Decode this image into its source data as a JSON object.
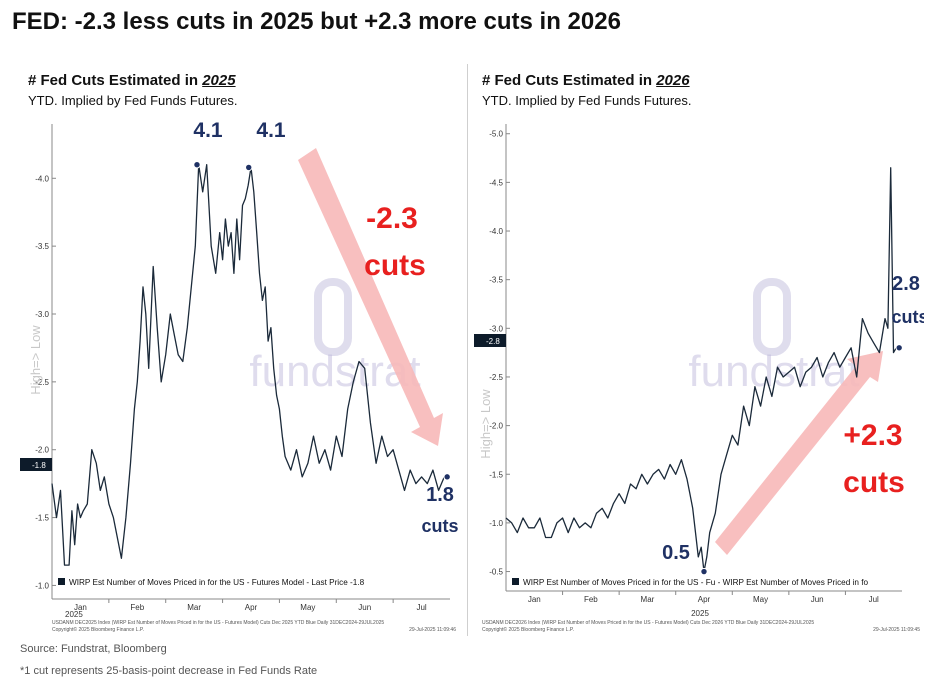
{
  "page": {
    "title": "FED: -2.3 less cuts in 2025 but +2.3 more cuts in 2026",
    "source": "Source: Fundstrat, Bloomberg",
    "footnote": "*1 cut represents 25-basis-point decrease in Fed Funds Rate",
    "watermark_text": "fundstrat"
  },
  "chart_data": [
    {
      "type": "line",
      "title_prefix": "# Fed Cuts Estimated in ",
      "title_year": "2025",
      "subtitle": "YTD. Implied by Fed Funds Futures.",
      "ylabel": "High=> Low",
      "ylim": [
        0.9,
        4.4
      ],
      "inverted_axis": true,
      "yticks": [
        4.0,
        3.5,
        3.0,
        2.5,
        2.0,
        1.5,
        1.0
      ],
      "ytick_labels": [
        "-4.0",
        "-3.5",
        "-3.0",
        "-2.5",
        "-2.0",
        "-1.5",
        "-1.0"
      ],
      "xlim": [
        0,
        7.0
      ],
      "xtick_labels": [
        "Jan",
        "Feb",
        "Mar",
        "Apr",
        "May",
        "Jun",
        "Jul"
      ],
      "xtick_pos": [
        0.5,
        1.5,
        2.5,
        3.5,
        4.5,
        5.5,
        6.5
      ],
      "x_year_label": "2025",
      "last_value_label": "-1.8",
      "last_value": 1.8,
      "legend": "WIRP Est Number of Moves Priced in for the US - Futures Model - Last Price -1.8",
      "bloomberg_line1": "USDANM DEC2025 Index (WIRP Est Number of Moves Priced in for the US - Futures Model) Cuts Dec 2025 YTD Blue  Daily 31DEC2024-29JUL2025",
      "bloomberg_line2": "Copyright© 2025 Bloomberg Finance L.P.",
      "bloomberg_date": "29-Jul-2025 11:09:46",
      "series": [
        {
          "name": "Dec 2025 cuts",
          "color": "#1b2a3a",
          "x": [
            0.0,
            0.08,
            0.15,
            0.22,
            0.3,
            0.35,
            0.4,
            0.45,
            0.5,
            0.55,
            0.62,
            0.7,
            0.78,
            0.85,
            0.92,
            1.0,
            1.08,
            1.15,
            1.22,
            1.3,
            1.38,
            1.45,
            1.5,
            1.55,
            1.6,
            1.65,
            1.7,
            1.78,
            1.85,
            1.92,
            2.0,
            2.08,
            2.15,
            2.22,
            2.3,
            2.38,
            2.45,
            2.52,
            2.58,
            2.65,
            2.72,
            2.8,
            2.88,
            2.95,
            3.0,
            3.05,
            3.1,
            3.15,
            3.2,
            3.25,
            3.3,
            3.35,
            3.4,
            3.45,
            3.5,
            3.55,
            3.6,
            3.65,
            3.7,
            3.75,
            3.8,
            3.85,
            3.9,
            3.95,
            4.0,
            4.05,
            4.1,
            4.2,
            4.3,
            4.4,
            4.5,
            4.6,
            4.7,
            4.8,
            4.9,
            5.0,
            5.1,
            5.2,
            5.3,
            5.4,
            5.5,
            5.6,
            5.7,
            5.8,
            5.9,
            6.0,
            6.1,
            6.2,
            6.3,
            6.4,
            6.5,
            6.6,
            6.7,
            6.8,
            6.9
          ],
          "values": [
            1.75,
            1.5,
            1.7,
            1.15,
            1.15,
            1.55,
            1.3,
            1.6,
            1.5,
            1.55,
            1.6,
            2.0,
            1.9,
            1.7,
            1.8,
            1.6,
            1.5,
            1.35,
            1.2,
            1.5,
            1.9,
            2.3,
            2.5,
            2.8,
            3.2,
            3.0,
            2.6,
            3.35,
            2.9,
            2.5,
            2.7,
            3.0,
            2.85,
            2.7,
            2.65,
            2.9,
            3.2,
            3.5,
            4.1,
            3.9,
            4.1,
            3.5,
            3.3,
            3.6,
            3.4,
            3.7,
            3.5,
            3.6,
            3.3,
            3.7,
            3.4,
            3.8,
            3.85,
            3.95,
            4.08,
            3.9,
            3.6,
            3.3,
            3.1,
            3.2,
            2.8,
            2.9,
            2.6,
            2.4,
            2.3,
            2.1,
            1.95,
            1.85,
            2.0,
            1.8,
            1.9,
            2.1,
            1.9,
            2.0,
            1.85,
            2.1,
            1.95,
            2.3,
            2.5,
            2.65,
            2.6,
            2.2,
            1.9,
            2.1,
            1.95,
            2.0,
            1.85,
            1.7,
            1.85,
            1.75,
            1.8,
            1.75,
            1.85,
            1.7,
            1.8
          ]
        }
      ],
      "annotations": [
        {
          "text": "4.1",
          "x": 2.55,
          "y": 4.1,
          "color": "#1f3164"
        },
        {
          "text": "4.1",
          "x": 3.46,
          "y": 4.08,
          "color": "#1f3164"
        },
        {
          "text": "1.8",
          "x": 6.95,
          "y": 1.8,
          "color": "#1f3164"
        },
        {
          "text": "cuts",
          "x": 6.95,
          "y": 1.8,
          "color": "#1f3164"
        },
        {
          "text": "-2.3",
          "color": "#e8201f"
        },
        {
          "text": "cuts",
          "color": "#e8201f"
        }
      ],
      "arrow": {
        "direction": "down",
        "color": "#f7b8b8"
      }
    },
    {
      "type": "line",
      "title_prefix": "# Fed Cuts Estimated in ",
      "title_year": "2026",
      "subtitle": "YTD. Implied by Fed Funds Futures.",
      "ylabel": "High=> Low",
      "ylim": [
        0.3,
        5.1
      ],
      "inverted_axis": true,
      "yticks": [
        5.0,
        4.5,
        4.0,
        3.5,
        3.0,
        2.5,
        2.0,
        1.5,
        1.0,
        0.5
      ],
      "ytick_labels": [
        "-5.0",
        "-4.5",
        "-4.0",
        "-3.5",
        "-3.0",
        "-2.5",
        "-2.0",
        "-1.5",
        "-1.0",
        "-0.5"
      ],
      "xlim": [
        0,
        7.0
      ],
      "xtick_labels": [
        "Jan",
        "Feb",
        "Mar",
        "Apr",
        "May",
        "Jun",
        "Jul"
      ],
      "xtick_pos": [
        0.5,
        1.5,
        2.5,
        3.5,
        4.5,
        5.5,
        6.5
      ],
      "x_year_label": "2025",
      "last_value_label": "-2.8",
      "last_value": 2.8,
      "legend": "WIRP Est Number of Moves Priced in for the US - Fu - WIRP Est Number of Moves Priced in fo",
      "bloomberg_line1": "USDANM DEC2026 Index (WIRP Est Number of Moves Priced in for the US - Futures Model) Cuts Dec 2026 YTD Blue  Daily 31DEC2024-29JUL2025",
      "bloomberg_line2": "Copyright© 2025 Bloomberg Finance L.P.",
      "bloomberg_date": "29-Jul-2025 11:09:45",
      "series": [
        {
          "name": "Dec 2026 cuts",
          "color": "#1b2a3a",
          "x": [
            0.0,
            0.1,
            0.2,
            0.3,
            0.4,
            0.5,
            0.6,
            0.7,
            0.8,
            0.9,
            1.0,
            1.1,
            1.2,
            1.3,
            1.4,
            1.5,
            1.6,
            1.7,
            1.8,
            1.9,
            2.0,
            2.1,
            2.2,
            2.3,
            2.4,
            2.5,
            2.6,
            2.7,
            2.8,
            2.9,
            3.0,
            3.1,
            3.2,
            3.25,
            3.3,
            3.35,
            3.4,
            3.45,
            3.5,
            3.55,
            3.6,
            3.7,
            3.8,
            3.9,
            4.0,
            4.1,
            4.2,
            4.3,
            4.4,
            4.5,
            4.6,
            4.7,
            4.8,
            4.9,
            5.0,
            5.1,
            5.2,
            5.3,
            5.4,
            5.5,
            5.6,
            5.7,
            5.8,
            5.9,
            6.0,
            6.1,
            6.2,
            6.3,
            6.4,
            6.5,
            6.6,
            6.7,
            6.75,
            6.8,
            6.85,
            6.9,
            6.95
          ],
          "values": [
            1.05,
            1.0,
            0.9,
            1.05,
            0.95,
            0.95,
            1.05,
            0.85,
            0.85,
            1.0,
            1.05,
            0.9,
            1.05,
            0.95,
            1.0,
            0.95,
            1.1,
            1.15,
            1.05,
            1.2,
            1.3,
            1.2,
            1.4,
            1.35,
            1.5,
            1.4,
            1.5,
            1.55,
            1.45,
            1.6,
            1.5,
            1.65,
            1.45,
            1.3,
            1.15,
            0.9,
            0.65,
            0.75,
            0.5,
            0.65,
            0.9,
            1.1,
            1.5,
            1.7,
            1.9,
            1.8,
            2.2,
            2.0,
            2.4,
            2.2,
            2.5,
            2.3,
            2.6,
            2.5,
            2.55,
            2.6,
            2.4,
            2.55,
            2.6,
            2.7,
            2.5,
            2.65,
            2.75,
            2.6,
            2.7,
            2.8,
            2.5,
            3.1,
            2.95,
            2.85,
            2.75,
            3.1,
            3.0,
            4.65,
            2.75,
            2.8,
            2.8
          ]
        }
      ],
      "annotations": [
        {
          "text": "0.5",
          "x": 3.5,
          "y": 0.5,
          "color": "#1f3164"
        },
        {
          "text": "2.8",
          "x": 6.95,
          "y": 2.8,
          "color": "#1f3164"
        },
        {
          "text": "cuts",
          "x": 6.95,
          "y": 2.8,
          "color": "#1f3164"
        },
        {
          "text": "+2.3",
          "color": "#e8201f"
        },
        {
          "text": "cuts",
          "color": "#e8201f"
        }
      ],
      "arrow": {
        "direction": "up",
        "color": "#f7b8b8"
      }
    }
  ]
}
